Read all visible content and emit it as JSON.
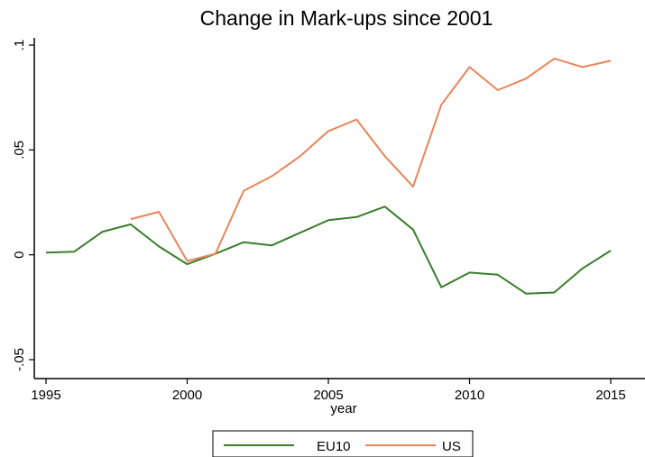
{
  "chart_data": {
    "type": "line",
    "title": "Change in Mark-ups since 2001",
    "xlabel": "year",
    "ylabel": "",
    "xlim": [
      1995,
      2015
    ],
    "ylim": [
      -0.05,
      0.1
    ],
    "x_ticks": [
      {
        "value": 1995,
        "label": "1995"
      },
      {
        "value": 2000,
        "label": "2000"
      },
      {
        "value": 2005,
        "label": "2005"
      },
      {
        "value": 2010,
        "label": "2010"
      },
      {
        "value": 2015,
        "label": "2015"
      }
    ],
    "y_ticks": [
      {
        "value": -0.05,
        "label": "-.05"
      },
      {
        "value": 0,
        "label": "0"
      },
      {
        "value": 0.05,
        "label": ".05"
      },
      {
        "value": 0.1,
        "label": ".1"
      }
    ],
    "grid": false,
    "legend_position": "bottom",
    "series": [
      {
        "name": "EU10",
        "color": "#3a7d2c",
        "x": [
          1995,
          1996,
          1997,
          1998,
          1999,
          2000,
          2001,
          2002,
          2003,
          2004,
          2005,
          2006,
          2007,
          2008,
          2009,
          2010,
          2011,
          2012,
          2013,
          2014,
          2015
        ],
        "y": [
          0.001,
          0.0015,
          0.011,
          0.0145,
          0.004,
          -0.0045,
          0.0005,
          0.006,
          0.0045,
          0.0105,
          0.0165,
          0.018,
          0.023,
          0.012,
          -0.0155,
          -0.0085,
          -0.0095,
          -0.0185,
          -0.018,
          -0.0065,
          0.002
        ]
      },
      {
        "name": "US",
        "color": "#e8855a",
        "x": [
          1998,
          1999,
          2000,
          2001,
          2002,
          2003,
          2004,
          2005,
          2006,
          2007,
          2008,
          2009,
          2010,
          2011,
          2012,
          2013,
          2014,
          2015
        ],
        "y": [
          0.017,
          0.0205,
          -0.003,
          0.0005,
          0.0305,
          0.0375,
          0.047,
          0.059,
          0.0645,
          0.047,
          0.0325,
          0.0715,
          0.0895,
          0.0785,
          0.084,
          0.0935,
          0.0895,
          0.0925
        ]
      }
    ]
  }
}
